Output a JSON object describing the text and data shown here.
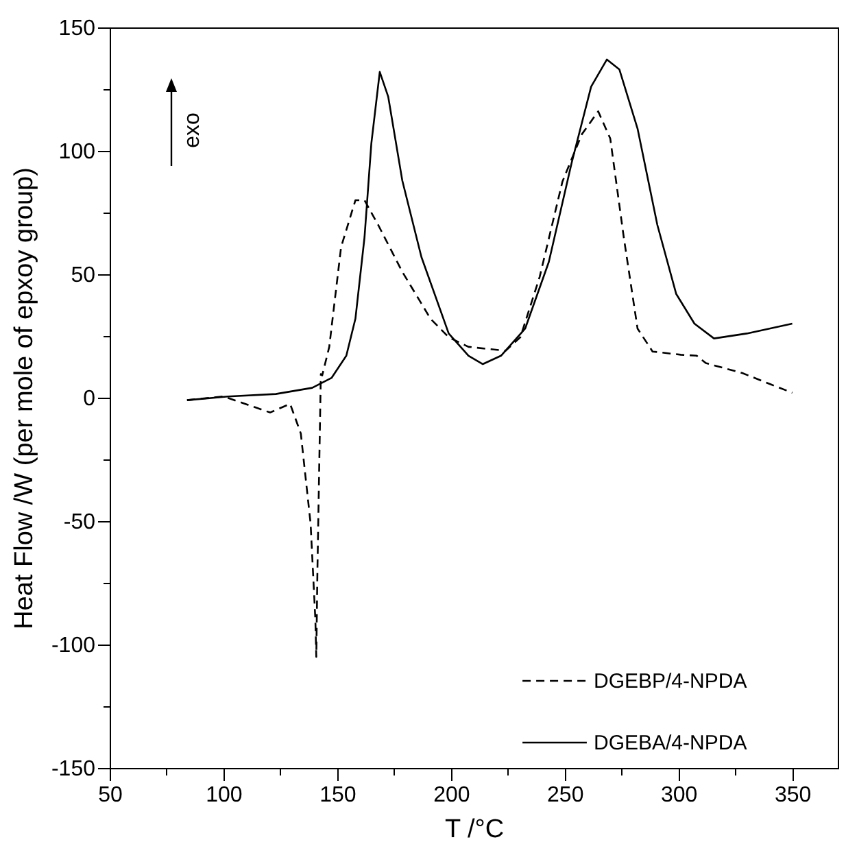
{
  "chart_data": {
    "type": "line",
    "xlabel": "T /°C",
    "ylabel": "Heat Flow /W (per mole of epxoy group)",
    "annotations": [
      "exo"
    ],
    "legend": "bottom right",
    "xlim": [
      50,
      370
    ],
    "xticks": [
      50,
      {
        "value": 75,
        "label": null
      },
      100,
      {
        "value": 125,
        "label": null
      },
      150,
      {
        "value": 175,
        "label": null
      },
      200,
      {
        "value": 225,
        "label": null
      },
      250,
      {
        "value": 275,
        "label": null
      },
      300,
      {
        "value": 325,
        "label": null
      },
      350
    ],
    "ylim": [
      -150,
      150
    ],
    "yticks": [
      -150,
      {
        "value": -125,
        "label": null
      },
      -100,
      {
        "value": -75,
        "label": null
      },
      -50,
      {
        "value": -25,
        "label": null
      },
      0,
      {
        "value": 25,
        "label": null
      },
      50,
      {
        "value": 75,
        "label": null
      },
      100,
      {
        "value": 125,
        "label": null
      },
      150
    ],
    "series": [
      {
        "name": "DGEBP/4-NPDA",
        "color": "#000000",
        "line_style": "dashed",
        "x": [
          84,
          100,
          108,
          120.5,
          129.3,
          134,
          138.3,
          140.4,
          140.8,
          141.3,
          142.8,
          143.4,
          146.5,
          151.7,
          158,
          162,
          168,
          178.6,
          191,
          199,
          207.7,
          224,
          230.5,
          239,
          249,
          257.5,
          264.7,
          270,
          276,
          282,
          288.6,
          301,
          308,
          312,
          328,
          340.5,
          350
        ],
        "values": [
          -1,
          0.5,
          -2,
          -6,
          -2.5,
          -14.5,
          -51,
          -90,
          -105,
          -70,
          9.6,
          9,
          20.6,
          61,
          80,
          80,
          70,
          51,
          32,
          24.5,
          20.6,
          19,
          24.5,
          49,
          87.6,
          106.7,
          116,
          105,
          64.6,
          28,
          18.7,
          17.4,
          17,
          14,
          10,
          5.4,
          2
        ]
      },
      {
        "name": "DGEBA/4-NPDA",
        "color": "#000000",
        "line_style": "solid",
        "x": [
          84,
          102,
          123,
          139,
          147.5,
          154,
          158,
          162,
          165,
          168.7,
          172.4,
          178.6,
          187,
          199,
          207.7,
          214,
          222,
          232.6,
          243,
          253,
          261.6,
          268.5,
          274,
          282,
          290.7,
          299,
          307,
          315.6,
          330,
          350
        ],
        "values": [
          -1,
          0.5,
          1.5,
          4,
          8,
          17,
          32,
          65,
          103,
          132,
          122,
          88,
          57,
          26,
          17,
          13.6,
          17,
          28,
          55,
          95,
          126,
          137,
          133,
          109,
          70,
          42,
          30,
          24,
          26,
          30
        ]
      }
    ]
  }
}
